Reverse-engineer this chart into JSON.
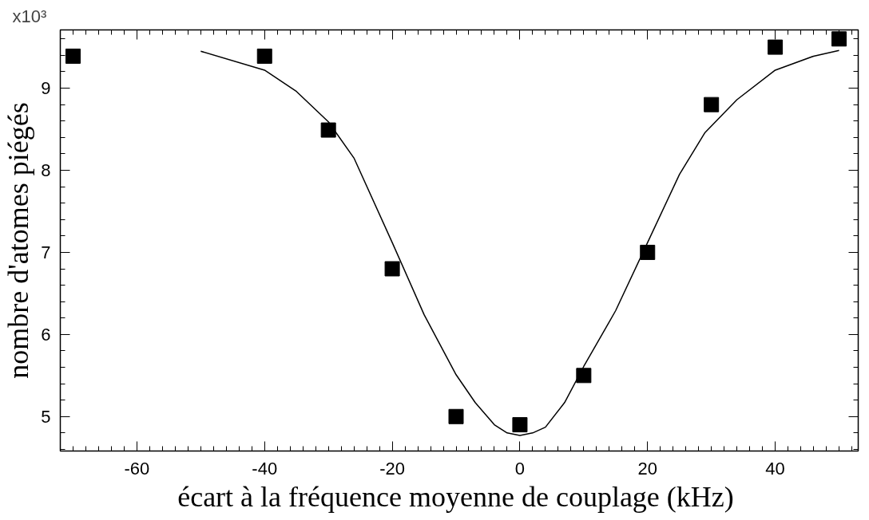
{
  "chart_data": {
    "type": "scatter",
    "xlabel": "écart à la fréquence moyenne de couplage  (kHz)",
    "ylabel": "nombre d'atomes piégés",
    "annotations": [
      "x10³"
    ],
    "grid": false,
    "xlim": [
      -72,
      53
    ],
    "ylim": [
      4.58,
      9.71
    ],
    "xticks": [
      -60,
      -40,
      -20,
      0,
      20,
      40
    ],
    "yticks": [
      5,
      6,
      7,
      8,
      9
    ],
    "series": [
      {
        "marker": "square",
        "color": "#000000",
        "x": [
          -70,
          -40,
          -30,
          -20,
          -10,
          0,
          10,
          20,
          30,
          40,
          50
        ],
        "values": [
          9.39,
          9.39,
          8.49,
          6.8,
          5.0,
          4.9,
          5.5,
          7.0,
          8.8,
          9.5,
          9.6
        ]
      },
      {
        "type": "line",
        "color": "#000000",
        "x": [
          -50,
          -40,
          -35,
          -30,
          -26,
          -20,
          -15,
          -10,
          -7,
          -4,
          -2,
          0,
          2,
          4,
          7,
          10,
          15,
          20,
          25,
          29,
          34,
          40,
          46,
          50
        ],
        "values": [
          9.45,
          9.22,
          8.96,
          8.59,
          8.15,
          7.12,
          6.24,
          5.51,
          5.17,
          4.9,
          4.8,
          4.77,
          4.8,
          4.87,
          5.17,
          5.61,
          6.29,
          7.12,
          7.95,
          8.46,
          8.86,
          9.22,
          9.39,
          9.46
        ]
      }
    ]
  }
}
